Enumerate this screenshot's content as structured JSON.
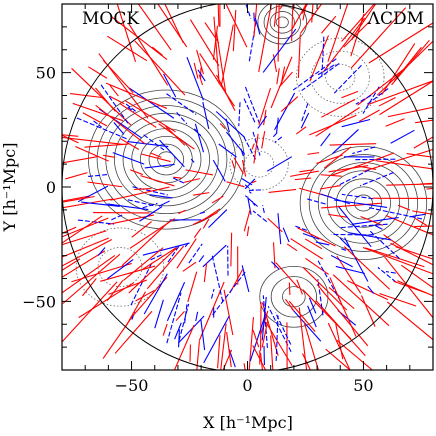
{
  "chart_data": {
    "type": "scatter",
    "title_left": "MOCK",
    "title_right": "ΛCDM",
    "xlabel": "X [h⁻¹Mpc]",
    "ylabel": "Y [h⁻¹Mpc]",
    "xlim": [
      -80,
      80
    ],
    "ylim": [
      -80,
      80
    ],
    "xticks": [
      -50,
      0,
      50
    ],
    "yticks": [
      -50,
      0,
      50
    ],
    "xtick_labels": [
      "−50",
      "0",
      "50"
    ],
    "ytick_labels": [
      "−50",
      "0",
      "50"
    ],
    "survey_radius": 80,
    "grid": false,
    "series_colors": {
      "approaching": "#ff0000",
      "receding": "#0000ff"
    },
    "contours": {
      "color_positive": "#444444",
      "color_negative": "#666666",
      "peaks": [
        {
          "x": -35,
          "y": 12,
          "sign": "positive",
          "levels": 9,
          "max_radius": 32
        },
        {
          "x": 50,
          "y": -7,
          "sign": "positive",
          "levels": 7,
          "max_radius": 26
        },
        {
          "x": 15,
          "y": 72,
          "sign": "positive",
          "levels": 4,
          "max_radius": 10
        },
        {
          "x": 20,
          "y": -48,
          "sign": "positive",
          "levels": 3,
          "max_radius": 14
        },
        {
          "x": 40,
          "y": 48,
          "sign": "negative",
          "levels": 3,
          "max_radius": 18
        },
        {
          "x": -55,
          "y": -35,
          "sign": "negative",
          "levels": 2,
          "max_radius": 18
        },
        {
          "x": 5,
          "y": 10,
          "sign": "negative",
          "levels": 2,
          "max_radius": 12
        }
      ]
    },
    "vectors": {
      "description_hidden": false,
      "count": 420,
      "generator_seed": 7,
      "max_length": 35,
      "red_fraction": 0.62
    }
  }
}
